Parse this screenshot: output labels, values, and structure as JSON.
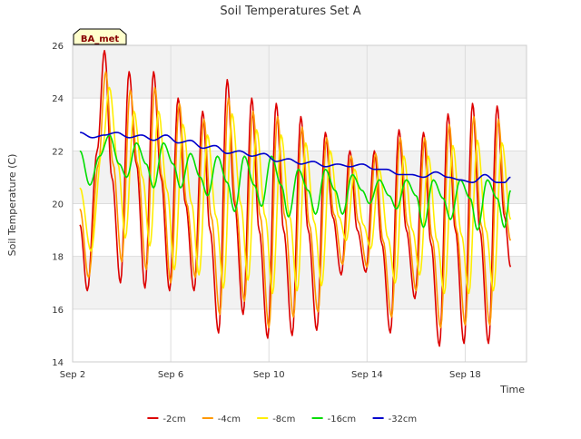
{
  "chart_data": {
    "type": "line",
    "title": "Soil Temperatures Set A",
    "xlabel": "Time",
    "ylabel": "Soil Temperature (C)",
    "annotation": "BA_met",
    "xlim": [
      2.0,
      20.5
    ],
    "ylim": [
      14,
      26
    ],
    "yticks": [
      14,
      16,
      18,
      20,
      22,
      24,
      26
    ],
    "xticks": [
      {
        "value": 2,
        "label": "Sep 2"
      },
      {
        "value": 6,
        "label": "Sep 6"
      },
      {
        "value": 10,
        "label": "Sep 10"
      },
      {
        "value": 14,
        "label": "Sep 14"
      },
      {
        "value": 18,
        "label": "Sep 18"
      }
    ],
    "grid": true,
    "legend_position": "bottom",
    "x_units": "day of September",
    "series": [
      {
        "name": "-2cm",
        "color": "#dd0000",
        "points": [
          [
            2.3,
            19.2
          ],
          [
            2.6,
            16.7
          ],
          [
            3.0,
            22.0
          ],
          [
            3.3,
            25.8
          ],
          [
            3.6,
            21.0
          ],
          [
            3.95,
            17.0
          ],
          [
            4.3,
            25.0
          ],
          [
            4.6,
            21.5
          ],
          [
            4.95,
            16.8
          ],
          [
            5.3,
            25.0
          ],
          [
            5.6,
            21.0
          ],
          [
            5.95,
            16.7
          ],
          [
            6.3,
            24.0
          ],
          [
            6.6,
            20.0
          ],
          [
            6.95,
            16.7
          ],
          [
            7.3,
            23.5
          ],
          [
            7.6,
            19.0
          ],
          [
            7.95,
            15.1
          ],
          [
            8.3,
            24.7
          ],
          [
            8.6,
            20.0
          ],
          [
            8.95,
            15.8
          ],
          [
            9.3,
            24.0
          ],
          [
            9.6,
            19.0
          ],
          [
            9.95,
            14.9
          ],
          [
            10.3,
            23.8
          ],
          [
            10.6,
            19.0
          ],
          [
            10.95,
            15.0
          ],
          [
            11.3,
            23.3
          ],
          [
            11.6,
            19.0
          ],
          [
            11.95,
            15.2
          ],
          [
            12.3,
            22.7
          ],
          [
            12.6,
            19.5
          ],
          [
            12.95,
            17.3
          ],
          [
            13.3,
            22.0
          ],
          [
            13.6,
            19.0
          ],
          [
            13.95,
            17.4
          ],
          [
            14.3,
            22.0
          ],
          [
            14.6,
            18.5
          ],
          [
            14.95,
            15.1
          ],
          [
            15.3,
            22.8
          ],
          [
            15.6,
            19.0
          ],
          [
            15.95,
            16.4
          ],
          [
            16.3,
            22.7
          ],
          [
            16.6,
            18.5
          ],
          [
            16.95,
            14.6
          ],
          [
            17.3,
            23.4
          ],
          [
            17.6,
            19.0
          ],
          [
            17.95,
            14.7
          ],
          [
            18.3,
            23.8
          ],
          [
            18.6,
            19.0
          ],
          [
            18.95,
            14.7
          ],
          [
            19.3,
            23.7
          ],
          [
            19.6,
            19.5
          ],
          [
            19.85,
            17.6
          ]
        ]
      },
      {
        "name": "-4cm",
        "color": "#ff9900",
        "points": [
          [
            2.3,
            19.8
          ],
          [
            2.65,
            17.2
          ],
          [
            3.05,
            21.5
          ],
          [
            3.35,
            25.0
          ],
          [
            3.65,
            21.5
          ],
          [
            4.0,
            17.8
          ],
          [
            4.35,
            24.3
          ],
          [
            4.65,
            21.5
          ],
          [
            5.0,
            17.5
          ],
          [
            5.35,
            24.4
          ],
          [
            5.65,
            21.0
          ],
          [
            6.0,
            17.0
          ],
          [
            6.35,
            23.8
          ],
          [
            6.65,
            20.0
          ],
          [
            7.0,
            17.2
          ],
          [
            7.35,
            23.2
          ],
          [
            7.65,
            19.5
          ],
          [
            8.0,
            15.8
          ],
          [
            8.35,
            24.0
          ],
          [
            8.65,
            20.0
          ],
          [
            9.0,
            16.3
          ],
          [
            9.35,
            23.5
          ],
          [
            9.65,
            19.5
          ],
          [
            10.0,
            15.3
          ],
          [
            10.35,
            23.3
          ],
          [
            10.65,
            19.5
          ],
          [
            11.0,
            15.7
          ],
          [
            11.35,
            22.9
          ],
          [
            11.65,
            19.2
          ],
          [
            12.0,
            15.9
          ],
          [
            12.35,
            22.5
          ],
          [
            12.65,
            19.6
          ],
          [
            13.0,
            17.7
          ],
          [
            13.35,
            21.8
          ],
          [
            13.65,
            19.3
          ],
          [
            14.0,
            17.6
          ],
          [
            14.35,
            21.9
          ],
          [
            14.65,
            18.6
          ],
          [
            15.0,
            15.7
          ],
          [
            15.35,
            22.5
          ],
          [
            15.65,
            19.2
          ],
          [
            16.0,
            16.7
          ],
          [
            16.35,
            22.5
          ],
          [
            16.65,
            18.7
          ],
          [
            17.0,
            15.3
          ],
          [
            17.35,
            23.0
          ],
          [
            17.65,
            19.0
          ],
          [
            18.0,
            15.4
          ],
          [
            18.35,
            23.3
          ],
          [
            18.65,
            19.2
          ],
          [
            19.0,
            15.4
          ],
          [
            19.35,
            23.2
          ],
          [
            19.65,
            19.6
          ],
          [
            19.85,
            18.6
          ]
        ]
      },
      {
        "name": "-8cm",
        "color": "#ffee00",
        "points": [
          [
            2.3,
            20.6
          ],
          [
            2.75,
            18.2
          ],
          [
            3.2,
            22.0
          ],
          [
            3.5,
            24.4
          ],
          [
            3.85,
            21.5
          ],
          [
            4.15,
            18.7
          ],
          [
            4.5,
            23.5
          ],
          [
            4.85,
            21.0
          ],
          [
            5.15,
            18.4
          ],
          [
            5.5,
            23.5
          ],
          [
            5.85,
            20.5
          ],
          [
            6.15,
            17.5
          ],
          [
            6.5,
            23.0
          ],
          [
            6.85,
            20.0
          ],
          [
            7.15,
            17.3
          ],
          [
            7.5,
            22.6
          ],
          [
            7.85,
            19.5
          ],
          [
            8.15,
            16.8
          ],
          [
            8.5,
            23.4
          ],
          [
            8.85,
            20.0
          ],
          [
            9.15,
            17.1
          ],
          [
            9.5,
            22.8
          ],
          [
            9.85,
            19.5
          ],
          [
            10.15,
            16.6
          ],
          [
            10.5,
            22.6
          ],
          [
            10.85,
            19.5
          ],
          [
            11.15,
            16.7
          ],
          [
            11.5,
            22.3
          ],
          [
            11.85,
            19.3
          ],
          [
            12.15,
            16.9
          ],
          [
            12.5,
            22.0
          ],
          [
            12.85,
            19.5
          ],
          [
            13.15,
            18.6
          ],
          [
            13.5,
            21.3
          ],
          [
            13.85,
            19.2
          ],
          [
            14.15,
            18.3
          ],
          [
            14.5,
            21.3
          ],
          [
            14.85,
            18.7
          ],
          [
            15.15,
            17.0
          ],
          [
            15.5,
            21.8
          ],
          [
            15.85,
            19.0
          ],
          [
            16.15,
            17.3
          ],
          [
            16.5,
            21.8
          ],
          [
            16.85,
            18.6
          ],
          [
            17.15,
            16.6
          ],
          [
            17.5,
            22.2
          ],
          [
            17.85,
            18.8
          ],
          [
            18.15,
            16.6
          ],
          [
            18.5,
            22.4
          ],
          [
            18.85,
            19.0
          ],
          [
            19.15,
            16.7
          ],
          [
            19.5,
            22.3
          ],
          [
            19.85,
            19.4
          ]
        ]
      },
      {
        "name": "-16cm",
        "color": "#00dd00",
        "points": [
          [
            2.3,
            22.0
          ],
          [
            2.7,
            20.7
          ],
          [
            3.1,
            21.8
          ],
          [
            3.5,
            22.6
          ],
          [
            3.9,
            21.5
          ],
          [
            4.2,
            21.0
          ],
          [
            4.6,
            22.3
          ],
          [
            5.0,
            21.5
          ],
          [
            5.3,
            20.6
          ],
          [
            5.7,
            22.3
          ],
          [
            6.1,
            21.5
          ],
          [
            6.4,
            20.6
          ],
          [
            6.8,
            21.9
          ],
          [
            7.2,
            21.0
          ],
          [
            7.5,
            20.3
          ],
          [
            7.9,
            21.8
          ],
          [
            8.3,
            20.8
          ],
          [
            8.6,
            19.7
          ],
          [
            9.0,
            21.8
          ],
          [
            9.4,
            20.7
          ],
          [
            9.7,
            19.9
          ],
          [
            10.1,
            21.8
          ],
          [
            10.5,
            20.7
          ],
          [
            10.8,
            19.5
          ],
          [
            11.2,
            21.3
          ],
          [
            11.6,
            20.5
          ],
          [
            11.9,
            19.6
          ],
          [
            12.3,
            21.3
          ],
          [
            12.7,
            20.5
          ],
          [
            13.0,
            19.6
          ],
          [
            13.4,
            21.1
          ],
          [
            13.8,
            20.5
          ],
          [
            14.1,
            20.0
          ],
          [
            14.5,
            20.9
          ],
          [
            14.9,
            20.3
          ],
          [
            15.2,
            19.8
          ],
          [
            15.6,
            20.9
          ],
          [
            16.0,
            20.3
          ],
          [
            16.3,
            19.1
          ],
          [
            16.7,
            20.9
          ],
          [
            17.1,
            20.2
          ],
          [
            17.4,
            19.4
          ],
          [
            17.8,
            20.9
          ],
          [
            18.2,
            20.2
          ],
          [
            18.5,
            19.0
          ],
          [
            18.9,
            20.9
          ],
          [
            19.3,
            20.2
          ],
          [
            19.6,
            19.1
          ],
          [
            19.85,
            20.5
          ]
        ]
      },
      {
        "name": "-32cm",
        "color": "#0000cc",
        "points": [
          [
            2.3,
            22.7
          ],
          [
            2.8,
            22.5
          ],
          [
            3.3,
            22.6
          ],
          [
            3.8,
            22.7
          ],
          [
            4.3,
            22.5
          ],
          [
            4.8,
            22.6
          ],
          [
            5.3,
            22.4
          ],
          [
            5.8,
            22.6
          ],
          [
            6.3,
            22.3
          ],
          [
            6.8,
            22.4
          ],
          [
            7.3,
            22.1
          ],
          [
            7.8,
            22.2
          ],
          [
            8.3,
            21.9
          ],
          [
            8.8,
            22.0
          ],
          [
            9.3,
            21.8
          ],
          [
            9.8,
            21.9
          ],
          [
            10.3,
            21.6
          ],
          [
            10.8,
            21.7
          ],
          [
            11.3,
            21.5
          ],
          [
            11.8,
            21.6
          ],
          [
            12.3,
            21.4
          ],
          [
            12.8,
            21.5
          ],
          [
            13.3,
            21.4
          ],
          [
            13.8,
            21.5
          ],
          [
            14.3,
            21.3
          ],
          [
            14.8,
            21.3
          ],
          [
            15.3,
            21.1
          ],
          [
            15.8,
            21.1
          ],
          [
            16.3,
            21.0
          ],
          [
            16.8,
            21.2
          ],
          [
            17.3,
            21.0
          ],
          [
            17.8,
            20.9
          ],
          [
            18.3,
            20.8
          ],
          [
            18.8,
            21.1
          ],
          [
            19.3,
            20.8
          ],
          [
            19.6,
            20.8
          ],
          [
            19.85,
            21.0
          ]
        ]
      }
    ]
  }
}
